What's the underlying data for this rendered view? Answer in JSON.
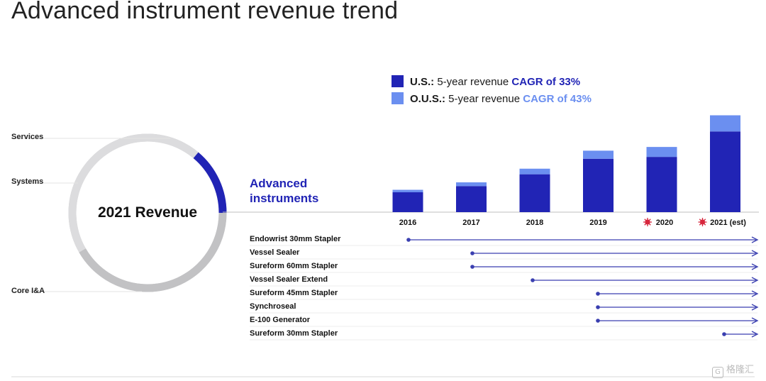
{
  "page": {
    "title": "Advanced instrument revenue trend",
    "watermark": "格隆汇",
    "watermark_icon": "G"
  },
  "colors": {
    "us": "#2124b5",
    "ous": "#6b8ff0",
    "line": "#3a3fb0",
    "donut_gray": "#cfcfd1",
    "donut_highlight": "#2124b5",
    "marker_red": "#d7263d"
  },
  "donut": {
    "center_label": "2021 Revenue",
    "segments": [
      {
        "name": "Services",
        "label": "Services"
      },
      {
        "name": "Systems",
        "label": "Systems"
      },
      {
        "name": "Advanced instruments",
        "label": "Advanced instruments",
        "highlight": true
      },
      {
        "name": "Core I&A",
        "label": "Core I&A"
      }
    ]
  },
  "chart_data": {
    "type": "bar",
    "stacked": true,
    "categories": [
      "2016",
      "2017",
      "2018",
      "2019",
      "2020",
      "2021 (est)"
    ],
    "category_markers": [
      false,
      false,
      false,
      false,
      true,
      true
    ],
    "series": [
      {
        "name": "U.S.",
        "values": [
          32,
          42,
          61,
          86,
          89,
          130
        ]
      },
      {
        "name": "O.U.S.",
        "values": [
          4,
          6,
          9,
          13,
          16,
          26
        ]
      }
    ],
    "legend": [
      {
        "bold": "U.S.:",
        "text": " 5-year revenue ",
        "highlight": "CAGR of 33%"
      },
      {
        "bold": "O.U.S.:",
        "text": " 5-year revenue ",
        "highlight": "CAGR of 43%"
      }
    ],
    "legend_position": "top",
    "ylim": [
      0,
      160
    ],
    "grid": false
  },
  "timeline": {
    "products": [
      {
        "name": "Endowrist 30mm Stapler",
        "launch": 2016
      },
      {
        "name": "Vessel Sealer",
        "launch": 2017
      },
      {
        "name": "Sureform 60mm Stapler",
        "launch": 2017
      },
      {
        "name": "Vessel Sealer Extend",
        "launch": 2018
      },
      {
        "name": "Sureform 45mm Stapler",
        "launch": 2019
      },
      {
        "name": "Synchroseal",
        "launch": 2019
      },
      {
        "name": "E-100 Generator",
        "launch": 2019
      },
      {
        "name": "Sureform 30mm Stapler",
        "launch": 2021
      }
    ]
  }
}
